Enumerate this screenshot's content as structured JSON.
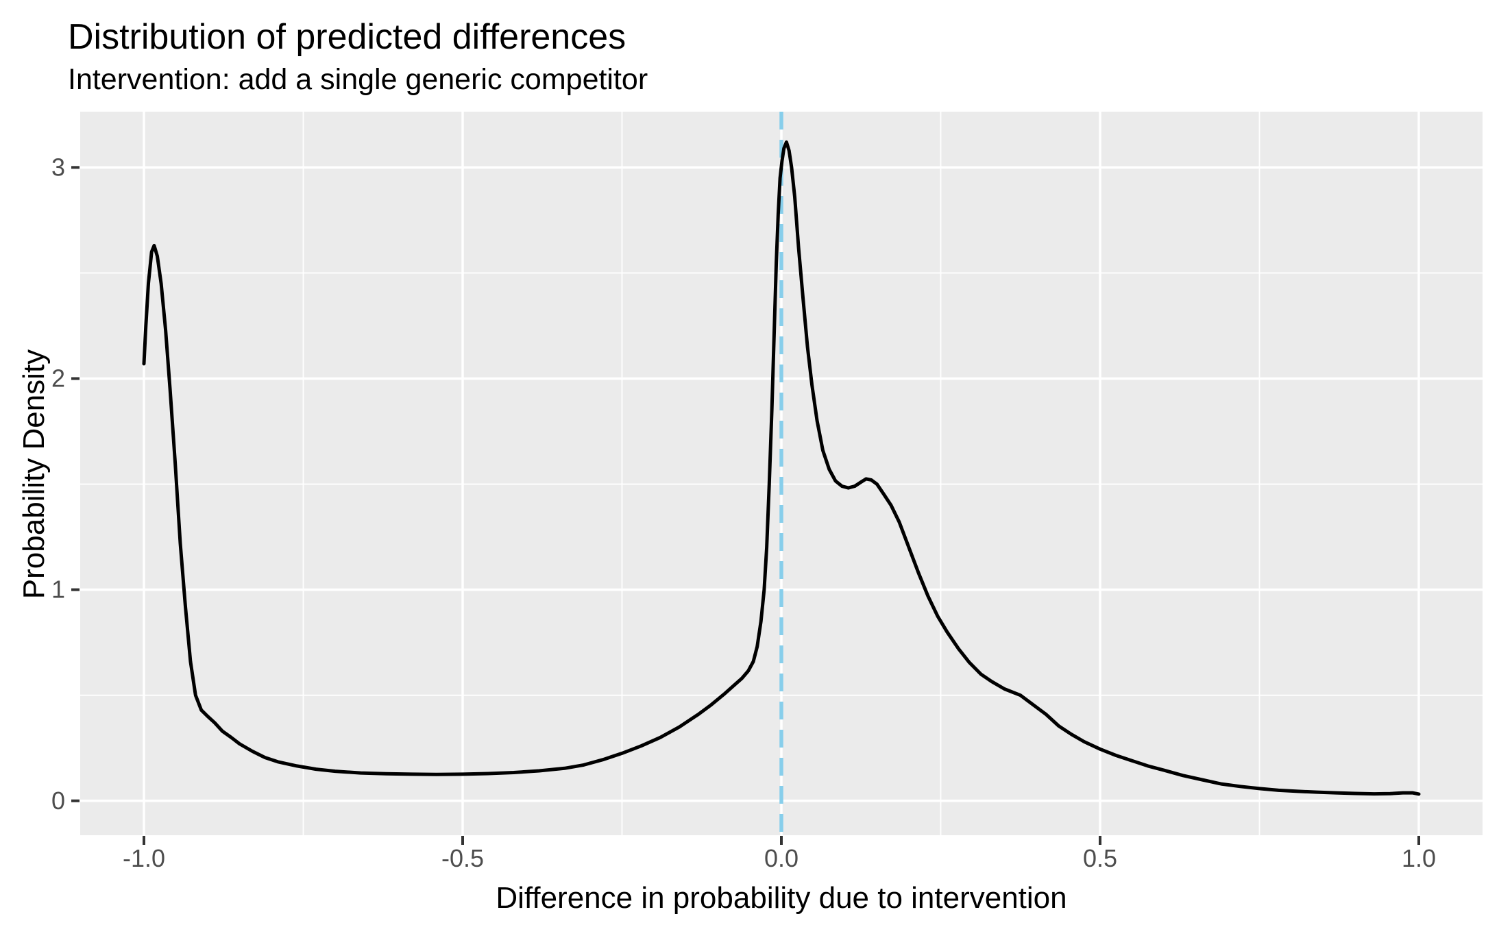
{
  "chart": {
    "title": "Distribution of predicted differences",
    "subtitle": "Intervention: add a single generic competitor",
    "xlabel": "Difference in probability due to intervention",
    "ylabel": "Probability Density"
  },
  "colors": {
    "background": "#FFFFFF",
    "panel_background": "#EBEBEB",
    "gridline": "#FFFFFF",
    "curve": "#000000",
    "reference_line": "#87CEEB",
    "tick_mark": "#333333",
    "tick_label": "#4D4D4D",
    "text": "#000000"
  },
  "chart_data": {
    "type": "line",
    "title": "Distribution of predicted differences",
    "subtitle": "Intervention: add a single generic competitor",
    "xlabel": "Difference in probability due to intervention",
    "ylabel": "Probability Density",
    "xlim": [
      -1.1,
      1.1
    ],
    "ylim": [
      -0.163,
      3.264
    ],
    "x_ticks": [
      -1.0,
      -0.5,
      0.0,
      0.5,
      1.0
    ],
    "x_tick_labels": [
      "-1.0",
      "-0.5",
      "0.0",
      "0.5",
      "1.0"
    ],
    "y_ticks": [
      0,
      1,
      2,
      3
    ],
    "y_tick_labels": [
      "0",
      "1",
      "2",
      "3"
    ],
    "x_minor_gridlines": [
      -0.75,
      -0.25,
      0.25,
      0.75
    ],
    "y_minor_gridlines": [
      0.5,
      1.5,
      2.5
    ],
    "grid": true,
    "legend_position": "none",
    "reference_line": {
      "x": 0.0,
      "style": "dashed",
      "color": "#87CEEB"
    },
    "series": [
      {
        "name": "density of predicted differences",
        "color": "#000000",
        "points": [
          [
            -1.0,
            2.07
          ],
          [
            -0.997,
            2.25
          ],
          [
            -0.993,
            2.45
          ],
          [
            -0.988,
            2.6
          ],
          [
            -0.984,
            2.63
          ],
          [
            -0.979,
            2.58
          ],
          [
            -0.973,
            2.45
          ],
          [
            -0.966,
            2.23
          ],
          [
            -0.959,
            1.95
          ],
          [
            -0.951,
            1.6
          ],
          [
            -0.943,
            1.22
          ],
          [
            -0.935,
            0.92
          ],
          [
            -0.927,
            0.66
          ],
          [
            -0.919,
            0.5
          ],
          [
            -0.91,
            0.43
          ],
          [
            -0.9,
            0.4
          ],
          [
            -0.889,
            0.37
          ],
          [
            -0.877,
            0.33
          ],
          [
            -0.863,
            0.3
          ],
          [
            -0.85,
            0.27
          ],
          [
            -0.83,
            0.235
          ],
          [
            -0.81,
            0.205
          ],
          [
            -0.79,
            0.185
          ],
          [
            -0.76,
            0.165
          ],
          [
            -0.73,
            0.15
          ],
          [
            -0.7,
            0.14
          ],
          [
            -0.66,
            0.132
          ],
          [
            -0.62,
            0.128
          ],
          [
            -0.58,
            0.126
          ],
          [
            -0.54,
            0.125
          ],
          [
            -0.5,
            0.126
          ],
          [
            -0.46,
            0.129
          ],
          [
            -0.42,
            0.134
          ],
          [
            -0.38,
            0.142
          ],
          [
            -0.34,
            0.154
          ],
          [
            -0.31,
            0.17
          ],
          [
            -0.28,
            0.195
          ],
          [
            -0.25,
            0.225
          ],
          [
            -0.22,
            0.26
          ],
          [
            -0.19,
            0.3
          ],
          [
            -0.16,
            0.35
          ],
          [
            -0.13,
            0.41
          ],
          [
            -0.11,
            0.455
          ],
          [
            -0.09,
            0.505
          ],
          [
            -0.075,
            0.545
          ],
          [
            -0.062,
            0.58
          ],
          [
            -0.052,
            0.615
          ],
          [
            -0.044,
            0.66
          ],
          [
            -0.038,
            0.73
          ],
          [
            -0.032,
            0.85
          ],
          [
            -0.027,
            1.0
          ],
          [
            -0.023,
            1.2
          ],
          [
            -0.019,
            1.5
          ],
          [
            -0.015,
            1.85
          ],
          [
            -0.011,
            2.25
          ],
          [
            -0.008,
            2.55
          ],
          [
            -0.005,
            2.78
          ],
          [
            -0.002,
            2.95
          ],
          [
            0.001,
            3.03
          ],
          [
            0.004,
            3.09
          ],
          [
            0.008,
            3.12
          ],
          [
            0.012,
            3.08
          ],
          [
            0.016,
            3.0
          ],
          [
            0.021,
            2.86
          ],
          [
            0.027,
            2.62
          ],
          [
            0.034,
            2.38
          ],
          [
            0.041,
            2.15
          ],
          [
            0.048,
            1.97
          ],
          [
            0.056,
            1.8
          ],
          [
            0.065,
            1.66
          ],
          [
            0.075,
            1.57
          ],
          [
            0.085,
            1.515
          ],
          [
            0.095,
            1.49
          ],
          [
            0.105,
            1.482
          ],
          [
            0.115,
            1.49
          ],
          [
            0.125,
            1.51
          ],
          [
            0.133,
            1.525
          ],
          [
            0.141,
            1.52
          ],
          [
            0.15,
            1.5
          ],
          [
            0.16,
            1.455
          ],
          [
            0.172,
            1.4
          ],
          [
            0.185,
            1.32
          ],
          [
            0.2,
            1.2
          ],
          [
            0.215,
            1.08
          ],
          [
            0.23,
            0.97
          ],
          [
            0.245,
            0.875
          ],
          [
            0.26,
            0.8
          ],
          [
            0.278,
            0.72
          ],
          [
            0.295,
            0.655
          ],
          [
            0.313,
            0.6
          ],
          [
            0.33,
            0.565
          ],
          [
            0.35,
            0.53
          ],
          [
            0.375,
            0.5
          ],
          [
            0.395,
            0.455
          ],
          [
            0.415,
            0.41
          ],
          [
            0.435,
            0.355
          ],
          [
            0.455,
            0.315
          ],
          [
            0.475,
            0.28
          ],
          [
            0.5,
            0.245
          ],
          [
            0.525,
            0.215
          ],
          [
            0.55,
            0.19
          ],
          [
            0.575,
            0.165
          ],
          [
            0.6,
            0.145
          ],
          [
            0.63,
            0.12
          ],
          [
            0.66,
            0.1
          ],
          [
            0.69,
            0.08
          ],
          [
            0.72,
            0.068
          ],
          [
            0.75,
            0.058
          ],
          [
            0.78,
            0.05
          ],
          [
            0.81,
            0.045
          ],
          [
            0.84,
            0.041
          ],
          [
            0.87,
            0.038
          ],
          [
            0.9,
            0.035
          ],
          [
            0.93,
            0.033
          ],
          [
            0.955,
            0.034
          ],
          [
            0.975,
            0.038
          ],
          [
            0.99,
            0.038
          ],
          [
            1.0,
            0.032
          ]
        ]
      }
    ]
  },
  "layout_text": {
    "note": ""
  }
}
